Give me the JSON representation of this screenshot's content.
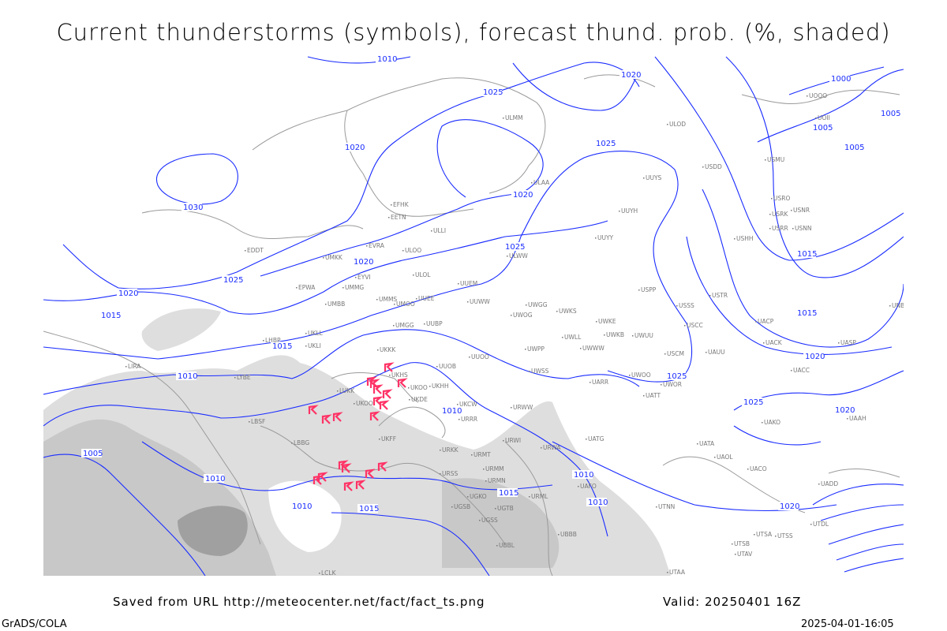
{
  "title": "Current thunderstorms (symbols), forecast thund. prob. (%, shaded)",
  "footer": {
    "source": "Saved from URL http://meteocenter.net/fact/fact_ts.png",
    "valid": "Valid: 20250401 16Z",
    "software": "GrADS/COLA",
    "generated": "2025-04-01-16:05"
  },
  "colors": {
    "isobar": "#1a2cff",
    "coastline": "#9a9a9a",
    "thunderstorm_symbol": "#ff3366",
    "prob_light": "#dcdcdc",
    "prob_medium": "#c4c4c4",
    "prob_dark": "#9e9e9e",
    "station_label": "#777777"
  },
  "isobar_labels": [
    "1010",
    "1020",
    "1025",
    "1020",
    "1030",
    "1025",
    "1020",
    "1015",
    "1015",
    "1020",
    "1010",
    "1015",
    "1010",
    "1005",
    "1005",
    "1010",
    "1015",
    "1015",
    "1010",
    "1010",
    "1020",
    "1025",
    "1025",
    "1010",
    "1015",
    "1020",
    "1025",
    "1020",
    "1000",
    "1005",
    "1005",
    "1025",
    "1020"
  ],
  "stations": [
    "ULMM",
    "ULAA",
    "ULOD",
    "UUYS",
    "USDD",
    "USMU",
    "UUYH",
    "UUYY",
    "ULWW",
    "EFHK",
    "EETN",
    "ULLI",
    "EVRA",
    "ULOO",
    "UMKK",
    "EDDT",
    "EYVI",
    "ULOL",
    "UUEM",
    "EPWA",
    "UMMG",
    "UMMS",
    "UMOO",
    "UUEE",
    "UUWW",
    "UWGG",
    "UMBB",
    "USPP",
    "USSS",
    "USTR",
    "UWKS",
    "UWKE",
    "UWKB",
    "UWUU",
    "UWLL",
    "UWWW",
    "UKLL",
    "UKLI",
    "UMGG",
    "UUBP",
    "USCC",
    "UACP",
    "UACK",
    "UASP",
    "LHBP",
    "UUOO",
    "UWPP",
    "USCM",
    "UAUU",
    "UKKK",
    "UUOB",
    "UWSS",
    "UACC",
    "UKHH",
    "UKOO",
    "UARR",
    "UWOO",
    "UWOR",
    "UATT",
    "LIRA",
    "LYBE",
    "LUKK",
    "UKOO",
    "UKDE",
    "UKCW",
    "URWW",
    "UAKO",
    "UAAH",
    "UKFF",
    "LBSF",
    "LBBG",
    "URRR",
    "URKK",
    "URMT",
    "URWI",
    "URWA",
    "UATG",
    "UATA",
    "UAOL",
    "UACO",
    "URSS",
    "URMM",
    "URMN",
    "UGKO",
    "UGSB",
    "UGTB",
    "UGSS",
    "UBBB",
    "UBBL",
    "UTAA",
    "UTNN",
    "UTSA",
    "UTSB",
    "UTAV",
    "UTSS",
    "LCLK",
    "UAFO",
    "URML",
    "UADD",
    "UTDL",
    "UNBB",
    "UOOO",
    "UOII",
    "USNN",
    "USRR",
    "USNR",
    "USRO",
    "USRK",
    "USHH",
    "UWOG",
    "UKHS"
  ]
}
